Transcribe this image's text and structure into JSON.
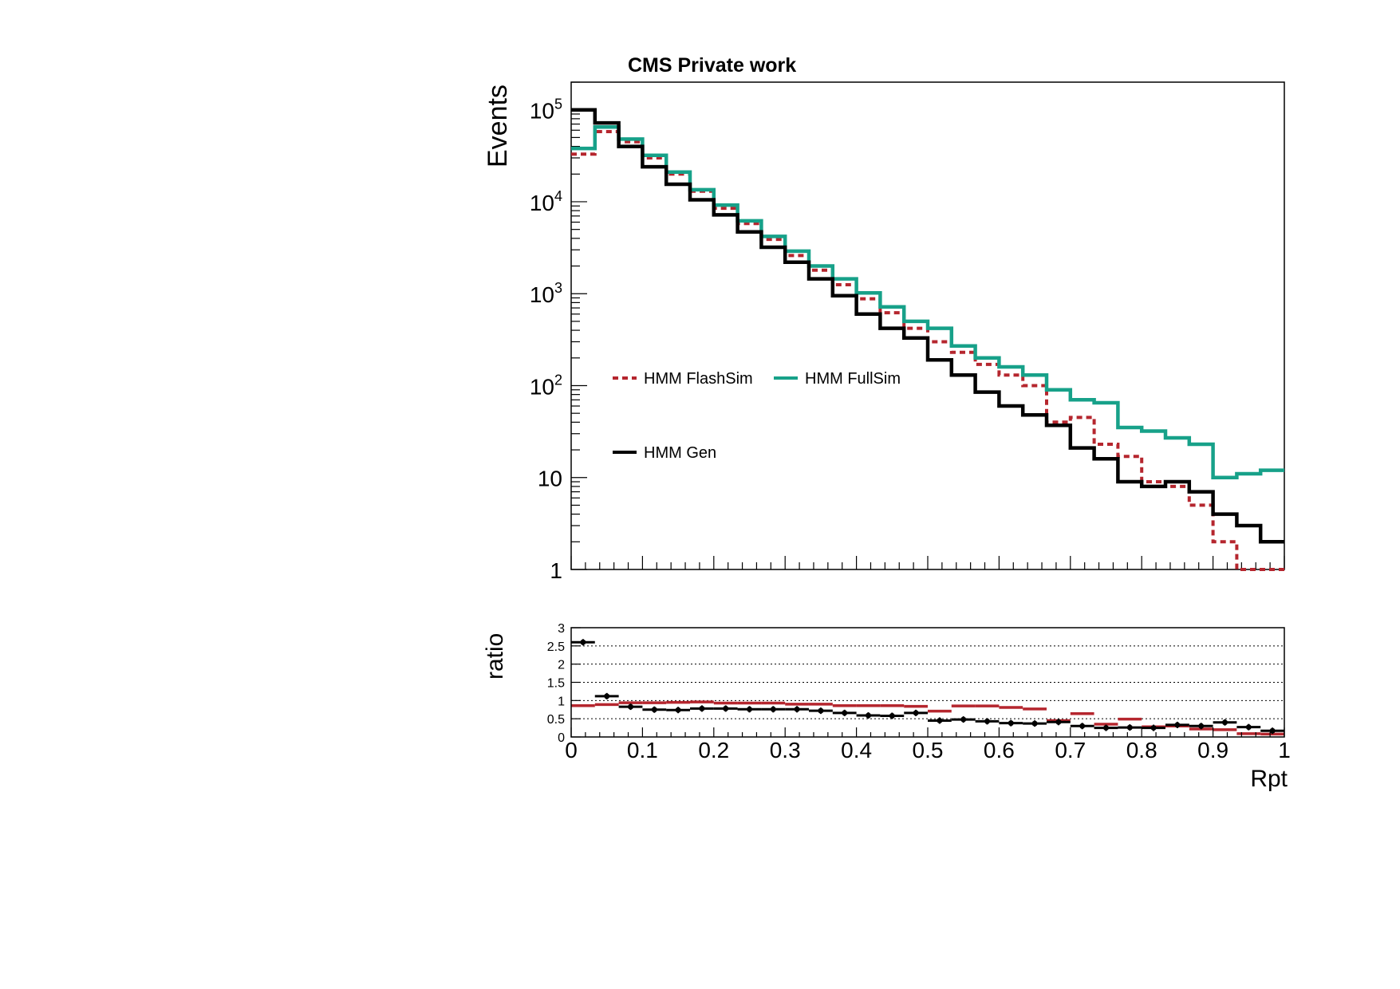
{
  "chart_data": [
    {
      "type": "line",
      "title": "CMS Private work",
      "xlabel": "",
      "ylabel": "Events",
      "x_bin_edges": [
        0,
        0.0333,
        0.0667,
        0.1,
        0.1333,
        0.1667,
        0.2,
        0.2333,
        0.2667,
        0.3,
        0.3333,
        0.3667,
        0.4,
        0.4333,
        0.4667,
        0.5,
        0.5333,
        0.5667,
        0.6,
        0.6333,
        0.6667,
        0.7,
        0.7333,
        0.7667,
        0.8,
        0.8333,
        0.8667,
        0.9,
        0.9333,
        0.9667,
        1.0
      ],
      "xlim": [
        0,
        1
      ],
      "ylim": [
        1,
        200000
      ],
      "yscale": "log",
      "y_tick_labels": [
        {
          "value": 1,
          "base": "1",
          "exp": ""
        },
        {
          "value": 10,
          "base": "10",
          "exp": ""
        },
        {
          "value": 100,
          "base": "10",
          "exp": "2"
        },
        {
          "value": 1000,
          "base": "10",
          "exp": "3"
        },
        {
          "value": 10000,
          "base": "10",
          "exp": "4"
        },
        {
          "value": 100000,
          "base": "10",
          "exp": "5"
        }
      ],
      "legend_placement": "middle-left",
      "series": [
        {
          "name": "HMM FlashSim",
          "style": "dotted",
          "color": "#b5262e",
          "values": [
            33000,
            58000,
            45000,
            30000,
            20000,
            13000,
            8500,
            5800,
            3900,
            2600,
            1800,
            1250,
            880,
            620,
            420,
            300,
            230,
            170,
            130,
            100,
            40,
            45,
            23,
            17,
            9,
            8,
            5,
            2,
            1,
            1
          ]
        },
        {
          "name": "HMM FullSim",
          "style": "solid",
          "color": "#17a189",
          "values": [
            38000,
            65000,
            48000,
            32000,
            21000,
            13500,
            9200,
            6200,
            4200,
            2900,
            2000,
            1450,
            1020,
            720,
            500,
            420,
            270,
            200,
            160,
            130,
            90,
            70,
            65,
            35,
            32,
            27,
            23,
            10,
            11,
            12
          ]
        },
        {
          "name": "HMM Gen",
          "style": "solid",
          "color": "#000000",
          "values": [
            100000,
            72000,
            40000,
            24000,
            15500,
            10500,
            7200,
            4700,
            3200,
            2200,
            1450,
            950,
            600,
            420,
            330,
            190,
            130,
            85,
            60,
            48,
            37,
            21,
            16,
            9,
            8,
            9,
            7,
            4,
            3,
            2
          ]
        }
      ]
    },
    {
      "type": "scatter",
      "title": "",
      "xlabel": "Rpt",
      "ylabel": "ratio",
      "xlim": [
        0,
        1
      ],
      "ylim": [
        0,
        3
      ],
      "x_ticks": [
        "0",
        "0.1",
        "0.2",
        "0.3",
        "0.4",
        "0.5",
        "0.6",
        "0.7",
        "0.8",
        "0.9",
        "1"
      ],
      "y_ticks": [
        "0",
        "0.5",
        "1",
        "1.5",
        "2",
        "2.5",
        "3"
      ],
      "grid_y": [
        0.5,
        1,
        1.5,
        2,
        2.5
      ],
      "grid": true,
      "series": [
        {
          "color": "#b5262e",
          "values": [
            0.86,
            0.89,
            0.94,
            0.94,
            0.95,
            0.96,
            0.93,
            0.93,
            0.93,
            0.9,
            0.9,
            0.86,
            0.86,
            0.86,
            0.84,
            0.71,
            0.85,
            0.85,
            0.81,
            0.77,
            0.45,
            0.64,
            0.35,
            0.49,
            0.28,
            0.3,
            0.22,
            0.2,
            0.09,
            0.08
          ]
        },
        {
          "color": "#000000",
          "values": [
            2.6,
            1.12,
            0.83,
            0.75,
            0.74,
            0.78,
            0.78,
            0.76,
            0.76,
            0.76,
            0.72,
            0.66,
            0.59,
            0.58,
            0.66,
            0.45,
            0.48,
            0.43,
            0.38,
            0.37,
            0.41,
            0.3,
            0.25,
            0.26,
            0.25,
            0.33,
            0.3,
            0.4,
            0.27,
            0.17
          ]
        }
      ]
    }
  ]
}
